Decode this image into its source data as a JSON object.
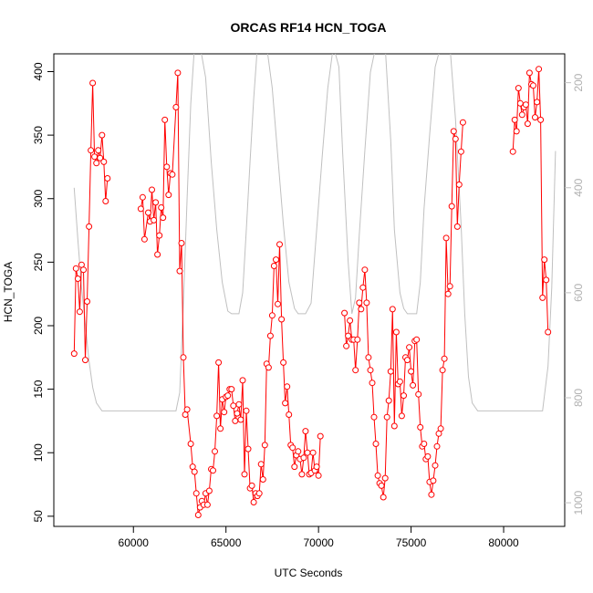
{
  "chart_data": {
    "type": "line",
    "title": "ORCAS RF14 HCN_TOGA",
    "xlabel": "UTC Seconds",
    "ylabel": "HCN_TOGA",
    "xlim": [
      55700,
      83300
    ],
    "ylim": [
      42,
      414
    ],
    "x_ticks": [
      60000,
      65000,
      70000,
      75000,
      80000
    ],
    "y_ticks": [
      50,
      100,
      150,
      200,
      250,
      300,
      350,
      400
    ],
    "grid": false,
    "legend": "none",
    "series": [
      {
        "color": "#ff0000",
        "marker": "open-circle",
        "points": [
          [
            56800,
            178
          ],
          [
            56900,
            245
          ],
          [
            57000,
            237
          ],
          [
            57100,
            211
          ],
          [
            57200,
            248
          ],
          [
            57300,
            244
          ],
          [
            57400,
            173
          ],
          [
            57500,
            219
          ],
          [
            57600,
            278
          ],
          [
            57700,
            338
          ],
          [
            57800,
            391
          ],
          [
            57900,
            333
          ],
          [
            58000,
            328
          ],
          [
            58100,
            338
          ],
          [
            58200,
            332
          ],
          [
            58300,
            350
          ],
          [
            58400,
            329
          ],
          [
            58500,
            298
          ],
          [
            58600,
            316
          ],
          [
            60400,
            292
          ],
          [
            60500,
            301
          ],
          [
            60600,
            268
          ],
          [
            60800,
            289
          ],
          [
            60900,
            282
          ],
          [
            61000,
            307
          ],
          [
            61100,
            283
          ],
          [
            61200,
            297
          ],
          [
            61300,
            256
          ],
          [
            61400,
            271
          ],
          [
            61500,
            293
          ],
          [
            61600,
            285
          ],
          [
            61700,
            362
          ],
          [
            61800,
            325
          ],
          [
            61900,
            303
          ],
          [
            62000,
            320
          ],
          [
            62100,
            319
          ],
          [
            62300,
            372
          ],
          [
            62400,
            399
          ],
          [
            62500,
            243
          ],
          [
            62600,
            265
          ],
          [
            62700,
            175
          ],
          [
            62800,
            130
          ],
          [
            62900,
            134
          ],
          [
            63100,
            107
          ],
          [
            63200,
            89
          ],
          [
            63300,
            85
          ],
          [
            63400,
            68
          ],
          [
            63500,
            51
          ],
          [
            63600,
            57
          ],
          [
            63700,
            62
          ],
          [
            63800,
            59
          ],
          [
            63900,
            68
          ],
          [
            64000,
            59
          ],
          [
            64100,
            70
          ],
          [
            64200,
            87
          ],
          [
            64300,
            86
          ],
          [
            64400,
            101
          ],
          [
            64500,
            129
          ],
          [
            64600,
            171
          ],
          [
            64700,
            119
          ],
          [
            64800,
            142
          ],
          [
            64900,
            132
          ],
          [
            65000,
            144
          ],
          [
            65100,
            145
          ],
          [
            65200,
            150
          ],
          [
            65300,
            150
          ],
          [
            65400,
            137
          ],
          [
            65500,
            125
          ],
          [
            65600,
            131
          ],
          [
            65700,
            138
          ],
          [
            65800,
            126
          ],
          [
            65900,
            157
          ],
          [
            66000,
            83
          ],
          [
            66100,
            133
          ],
          [
            66200,
            103
          ],
          [
            66300,
            72
          ],
          [
            66400,
            74
          ],
          [
            66500,
            61
          ],
          [
            66600,
            68
          ],
          [
            66700,
            66
          ],
          [
            66800,
            68
          ],
          [
            66900,
            91
          ],
          [
            67000,
            79
          ],
          [
            67100,
            106
          ],
          [
            67200,
            170
          ],
          [
            67300,
            167
          ],
          [
            67400,
            192
          ],
          [
            67500,
            208
          ],
          [
            67600,
            247
          ],
          [
            67700,
            252
          ],
          [
            67800,
            217
          ],
          [
            67900,
            264
          ],
          [
            68000,
            205
          ],
          [
            68100,
            171
          ],
          [
            68200,
            139
          ],
          [
            68300,
            152
          ],
          [
            68400,
            130
          ],
          [
            68500,
            106
          ],
          [
            68600,
            104
          ],
          [
            68700,
            89
          ],
          [
            68800,
            98
          ],
          [
            68900,
            101
          ],
          [
            69000,
            95
          ],
          [
            69100,
            83
          ],
          [
            69200,
            96
          ],
          [
            69300,
            117
          ],
          [
            69400,
            100
          ],
          [
            69500,
            83
          ],
          [
            69600,
            84
          ],
          [
            69700,
            100
          ],
          [
            69800,
            86
          ],
          [
            69900,
            89
          ],
          [
            70000,
            82
          ],
          [
            70100,
            113
          ],
          [
            71400,
            210
          ],
          [
            71500,
            184
          ],
          [
            71600,
            192
          ],
          [
            71700,
            204
          ],
          [
            71800,
            189
          ],
          [
            71900,
            189
          ],
          [
            72000,
            165
          ],
          [
            72100,
            189
          ],
          [
            72200,
            218
          ],
          [
            72300,
            213
          ],
          [
            72400,
            230
          ],
          [
            72500,
            244
          ],
          [
            72600,
            218
          ],
          [
            72700,
            175
          ],
          [
            72800,
            165
          ],
          [
            72900,
            155
          ],
          [
            73000,
            128
          ],
          [
            73100,
            107
          ],
          [
            73200,
            82
          ],
          [
            73300,
            76
          ],
          [
            73400,
            74
          ],
          [
            73500,
            65
          ],
          [
            73600,
            80
          ],
          [
            73700,
            128
          ],
          [
            73800,
            141
          ],
          [
            73900,
            164
          ],
          [
            74000,
            213
          ],
          [
            74100,
            121
          ],
          [
            74200,
            195
          ],
          [
            74300,
            154
          ],
          [
            74400,
            156
          ],
          [
            74500,
            129
          ],
          [
            74600,
            145
          ],
          [
            74700,
            175
          ],
          [
            74800,
            173
          ],
          [
            74900,
            183
          ],
          [
            75000,
            164
          ],
          [
            75100,
            153
          ],
          [
            75200,
            188
          ],
          [
            75300,
            189
          ],
          [
            75400,
            146
          ],
          [
            75500,
            120
          ],
          [
            75600,
            105
          ],
          [
            75700,
            107
          ],
          [
            75800,
            95
          ],
          [
            75900,
            97
          ],
          [
            76000,
            77
          ],
          [
            76100,
            67
          ],
          [
            76200,
            78
          ],
          [
            76300,
            90
          ],
          [
            76400,
            105
          ],
          [
            76500,
            115
          ],
          [
            76600,
            119
          ],
          [
            76700,
            165
          ],
          [
            76800,
            174
          ],
          [
            76900,
            269
          ],
          [
            77000,
            225
          ],
          [
            77100,
            231
          ],
          [
            77200,
            294
          ],
          [
            77300,
            353
          ],
          [
            77400,
            347
          ],
          [
            77500,
            278
          ],
          [
            77600,
            311
          ],
          [
            77700,
            337
          ],
          [
            77800,
            360
          ],
          [
            80500,
            337
          ],
          [
            80600,
            362
          ],
          [
            80700,
            353
          ],
          [
            80800,
            387
          ],
          [
            80900,
            375
          ],
          [
            81000,
            366
          ],
          [
            81100,
            372
          ],
          [
            81200,
            374
          ],
          [
            81300,
            359
          ],
          [
            81400,
            399
          ],
          [
            81500,
            390
          ],
          [
            81600,
            389
          ],
          [
            81700,
            364
          ],
          [
            81800,
            376
          ],
          [
            81900,
            402
          ],
          [
            82000,
            362
          ],
          [
            82100,
            222
          ],
          [
            82200,
            252
          ],
          [
            82300,
            236
          ],
          [
            82400,
            195
          ]
        ]
      }
    ],
    "secondary_axis": {
      "side": "right",
      "label": "",
      "ticks": [
        200,
        400,
        600,
        800,
        1000
      ],
      "ylim": [
        1045,
        145
      ],
      "inverted": true,
      "color": "#c0c0c0",
      "series": [
        {
          "color": "#c0c0c0",
          "points": [
            [
              56800,
              400
            ],
            [
              57000,
              500
            ],
            [
              57200,
              590
            ],
            [
              57400,
              660
            ],
            [
              57600,
              730
            ],
            [
              57800,
              780
            ],
            [
              58000,
              810
            ],
            [
              58300,
              825
            ],
            [
              59000,
              825
            ],
            [
              60000,
              825
            ],
            [
              61000,
              825
            ],
            [
              62000,
              825
            ],
            [
              62300,
              825
            ],
            [
              62500,
              790
            ],
            [
              62700,
              620
            ],
            [
              62900,
              420
            ],
            [
              63100,
              240
            ],
            [
              63300,
              130
            ],
            [
              63600,
              130
            ],
            [
              63900,
              190
            ],
            [
              64200,
              350
            ],
            [
              64500,
              480
            ],
            [
              64800,
              580
            ],
            [
              65100,
              635
            ],
            [
              65300,
              640
            ],
            [
              65700,
              640
            ],
            [
              65900,
              600
            ],
            [
              66100,
              480
            ],
            [
              66300,
              350
            ],
            [
              66500,
              230
            ],
            [
              66700,
              130
            ],
            [
              67200,
              130
            ],
            [
              67500,
              210
            ],
            [
              67800,
              340
            ],
            [
              68100,
              470
            ],
            [
              68400,
              580
            ],
            [
              68700,
              630
            ],
            [
              68900,
              640
            ],
            [
              69300,
              640
            ],
            [
              69600,
              620
            ],
            [
              69900,
              480
            ],
            [
              70200,
              340
            ],
            [
              70500,
              210
            ],
            [
              70800,
              130
            ],
            [
              71100,
              170
            ],
            [
              71300,
              330
            ],
            [
              71600,
              540
            ],
            [
              71800,
              640
            ],
            [
              72000,
              610
            ],
            [
              72200,
              490
            ],
            [
              72500,
              330
            ],
            [
              72800,
              180
            ],
            [
              73100,
              130
            ],
            [
              73600,
              130
            ],
            [
              73900,
              310
            ],
            [
              74100,
              480
            ],
            [
              74400,
              600
            ],
            [
              74600,
              630
            ],
            [
              74800,
              640
            ],
            [
              75300,
              640
            ],
            [
              75500,
              580
            ],
            [
              75700,
              440
            ],
            [
              76000,
              300
            ],
            [
              76300,
              170
            ],
            [
              76600,
              130
            ],
            [
              77100,
              130
            ],
            [
              77400,
              270
            ],
            [
              77700,
              470
            ],
            [
              77900,
              640
            ],
            [
              78100,
              760
            ],
            [
              78300,
              810
            ],
            [
              78600,
              825
            ],
            [
              79500,
              825
            ],
            [
              80500,
              825
            ],
            [
              81500,
              825
            ],
            [
              82100,
              825
            ],
            [
              82400,
              740
            ],
            [
              82600,
              590
            ],
            [
              82800,
              330
            ]
          ]
        }
      ]
    }
  }
}
